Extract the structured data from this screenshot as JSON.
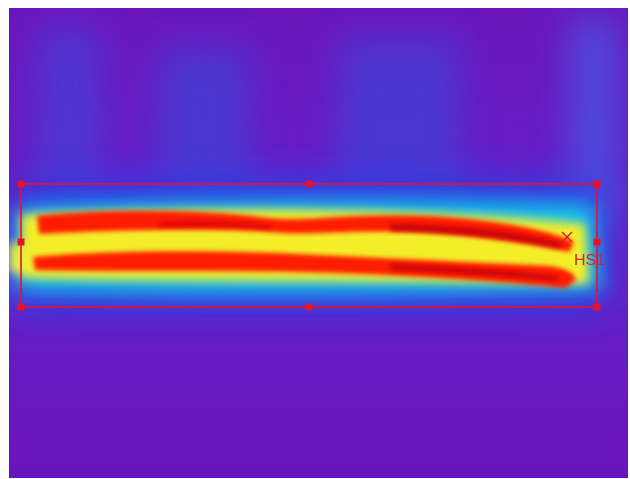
{
  "thermal_image": {
    "palette": "rainbow",
    "colors": {
      "background": "#6a14bc",
      "cold": "#2a3fe6",
      "cool": "#12c6e8",
      "warm": "#f4ee2a",
      "hot": "#ff1a00",
      "hottest": "#c00008"
    }
  },
  "measurement_box": {
    "color": "#e8102a",
    "handles": 8
  },
  "hotspot": {
    "label": "HS1",
    "color": "#d4203a",
    "marker_icon": "crosshair-x-icon"
  }
}
